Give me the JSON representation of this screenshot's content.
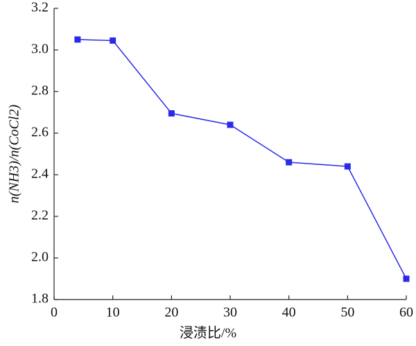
{
  "chart_data": {
    "type": "line",
    "x_label": "浸渍比/%",
    "y_label": "n(NH3)/n(CoCl2)",
    "x": [
      4,
      10,
      20,
      30,
      40,
      50,
      60
    ],
    "series": [
      {
        "color": "#2a2ae8",
        "values": [
          3.05,
          3.045,
          2.695,
          2.64,
          2.46,
          2.44,
          1.9
        ]
      }
    ],
    "xlim": [
      0,
      60
    ],
    "xticks": [
      0,
      10,
      20,
      30,
      40,
      50,
      60
    ],
    "ylim": [
      1.8,
      3.2
    ],
    "yticks": [
      1.8,
      {
        "value": 2.0,
        "label": "2.0"
      },
      2.2,
      2.4,
      2.6,
      2.8,
      {
        "value": 3.0,
        "label": "3.0"
      },
      3.2
    ],
    "grid": false
  }
}
